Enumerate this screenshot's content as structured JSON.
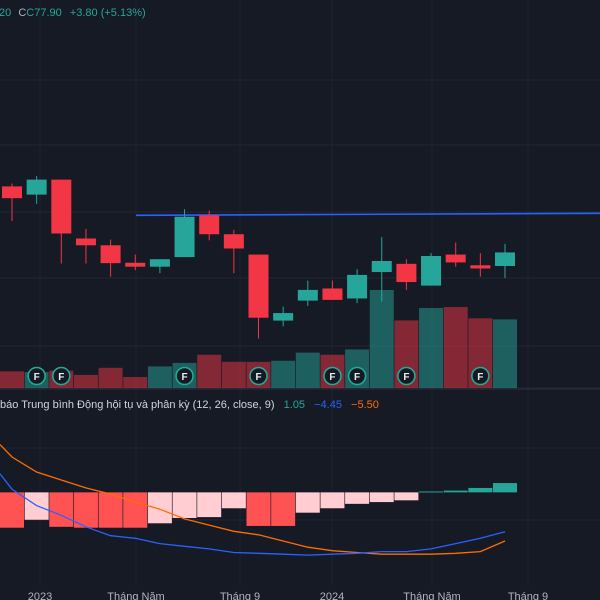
{
  "header": {
    "ohlc_prefix": "20",
    "close_label": "C77.90",
    "change": "+3.80 (+5.13%)"
  },
  "macd": {
    "title": "báo Trung bình Động hội tụ và phân kỳ (12, 26, close, 9)",
    "histogram_value": "1.05",
    "macd_value": "−4.45",
    "signal_value": "−5.50"
  },
  "x_axis_labels": [
    "2023",
    "Tháng Năm",
    "Tháng 9",
    "2024",
    "Tháng Năm",
    "Tháng 9"
  ],
  "colors": {
    "background": "#161a25",
    "up": "#26a69a",
    "down": "#f23645",
    "resistance_line": "#2962ff",
    "macd_line": "#2962ff",
    "signal_line": "#ff6d00",
    "hist_pos_strong": "#26a69a",
    "hist_pos_weak": "#b2dfdb",
    "hist_neg_strong": "#ff5252",
    "hist_neg_weak": "#ffcdd2",
    "financial_marker": "#22ab94"
  },
  "chart_data": [
    {
      "type": "candlestick",
      "interval": "monthly",
      "price_range": [
        50,
        108
      ],
      "resistance_level": 88.3,
      "candles": [
        {
          "o": 96.4,
          "h": 97.2,
          "l": 86.7,
          "c": 93.1
        },
        {
          "o": 94.1,
          "h": 99.3,
          "l": 91.5,
          "c": 98.3
        },
        {
          "o": 98.3,
          "h": 98.3,
          "l": 74.8,
          "c": 83.2
        },
        {
          "o": 81.8,
          "h": 84.5,
          "l": 74.8,
          "c": 79.9
        },
        {
          "o": 79.9,
          "h": 81.5,
          "l": 71.1,
          "c": 74.9
        },
        {
          "o": 75.0,
          "h": 77.3,
          "l": 72.9,
          "c": 73.9
        },
        {
          "o": 73.9,
          "h": 76.0,
          "l": 72.1,
          "c": 76.0
        },
        {
          "o": 76.6,
          "h": 90.0,
          "l": 76.6,
          "c": 87.9
        },
        {
          "o": 88.3,
          "h": 89.6,
          "l": 81.3,
          "c": 83.0
        },
        {
          "o": 83.0,
          "h": 84.2,
          "l": 72.1,
          "c": 79.0
        },
        {
          "o": 77.3,
          "h": 77.3,
          "l": 53.8,
          "c": 59.6
        },
        {
          "o": 58.8,
          "h": 62.7,
          "l": 57.2,
          "c": 60.9
        },
        {
          "o": 64.4,
          "h": 70.0,
          "l": 62.9,
          "c": 67.4
        },
        {
          "o": 67.8,
          "h": 70.0,
          "l": 64.6,
          "c": 64.6
        },
        {
          "o": 65.0,
          "h": 73.2,
          "l": 63.7,
          "c": 71.6
        },
        {
          "o": 72.4,
          "h": 82.2,
          "l": 64.1,
          "c": 75.5
        },
        {
          "o": 74.7,
          "h": 76.0,
          "l": 67.4,
          "c": 69.6
        },
        {
          "o": 68.6,
          "h": 77.7,
          "l": 68.6,
          "c": 76.9
        },
        {
          "o": 77.3,
          "h": 80.7,
          "l": 73.9,
          "c": 75.1
        },
        {
          "o": 74.3,
          "h": 77.7,
          "l": 71.1,
          "c": 73.4
        },
        {
          "o": 74.1,
          "h": 80.3,
          "l": 70.7,
          "c": 77.9
        }
      ],
      "volume": [
        {
          "v": 0.47,
          "up": false
        },
        {
          "v": 0.45,
          "up": true
        },
        {
          "v": 0.49,
          "up": false
        },
        {
          "v": 0.37,
          "up": false
        },
        {
          "v": 0.57,
          "up": false
        },
        {
          "v": 0.31,
          "up": false
        },
        {
          "v": 0.61,
          "up": true
        },
        {
          "v": 0.71,
          "up": true
        },
        {
          "v": 0.94,
          "up": false
        },
        {
          "v": 0.74,
          "up": false
        },
        {
          "v": 0.74,
          "up": false
        },
        {
          "v": 0.77,
          "up": true
        },
        {
          "v": 1.0,
          "up": true
        },
        {
          "v": 0.94,
          "up": false
        },
        {
          "v": 1.09,
          "up": true
        },
        {
          "v": 2.77,
          "up": true
        },
        {
          "v": 1.91,
          "up": false
        },
        {
          "v": 2.26,
          "up": true
        },
        {
          "v": 2.29,
          "up": false
        },
        {
          "v": 1.97,
          "up": false
        },
        {
          "v": 1.94,
          "up": true
        }
      ],
      "financial_markers": [
        1,
        2,
        7,
        10,
        13,
        14,
        16,
        19
      ]
    },
    {
      "type": "macd",
      "params": "12, 26, close, 9",
      "value_range": [
        -7.2,
        4.0
      ],
      "histogram": [
        -4.0,
        -3.1,
        -3.9,
        -4.0,
        -4.0,
        -4.0,
        -3.5,
        -2.9,
        -2.8,
        -1.8,
        -3.8,
        -3.8,
        -2.3,
        -1.8,
        -1.3,
        -1.1,
        -0.9,
        0.1,
        0.2,
        0.5,
        1.05
      ],
      "macd": [
        0.35,
        -1.5,
        -2.6,
        -3.9,
        -4.9,
        -5.2,
        -5.8,
        -6.1,
        -6.4,
        -6.8,
        -6.9,
        -7.0,
        -7.1,
        -7.0,
        -6.9,
        -6.7,
        -6.7,
        -6.4,
        -5.8,
        -5.2,
        -4.45
      ],
      "signal": [
        4.0,
        2.3,
        1.4,
        0.5,
        -0.2,
        -1.1,
        -1.9,
        -3.0,
        -3.7,
        -4.4,
        -4.8,
        -5.5,
        -6.2,
        -6.6,
        -6.8,
        -7.0,
        -7.0,
        -7.0,
        -6.9,
        -6.7,
        -5.5
      ]
    }
  ]
}
